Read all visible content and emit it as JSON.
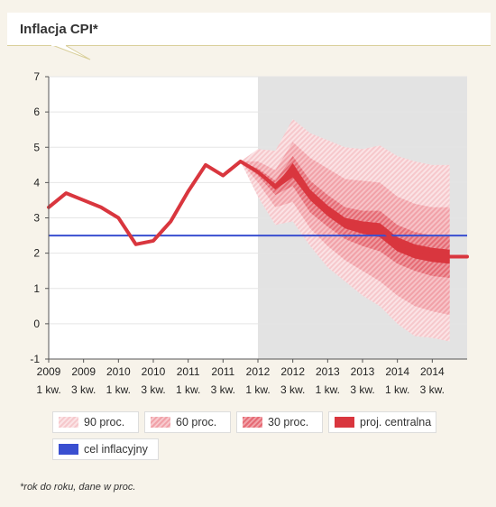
{
  "title": "Inflacja CPI*",
  "footnote": "*rok do roku, dane w proc.",
  "legend": {
    "band90": "90 proc.",
    "band60": "60 proc.",
    "band30": "30 proc.",
    "central": "proj. centralna",
    "target": "cel inflacyjny"
  },
  "colors": {
    "band90": "#f6c8cc",
    "band60": "#f1a1a8",
    "band30": "#e66a74",
    "central": "#d9363e",
    "target": "#3a4fd0",
    "forecast_bg": "#e3e3e3"
  },
  "chart_data": {
    "type": "line",
    "title": "Inflacja CPI*",
    "ylim": [
      -1,
      7
    ],
    "yticks": [
      -1,
      0,
      1,
      2,
      3,
      4,
      5,
      6,
      7
    ],
    "x_tick_years": [
      "2009",
      "2009",
      "2010",
      "2010",
      "2011",
      "2011",
      "2012",
      "2012",
      "2013",
      "2013",
      "2014",
      "2014"
    ],
    "x_tick_quarters": [
      "1 kw.",
      "3 kw.",
      "1 kw.",
      "3 kw.",
      "1 kw.",
      "3 kw.",
      "1 kw.",
      "3 kw.",
      "1 kw.",
      "3 kw.",
      "1 kw.",
      "3 kw."
    ],
    "forecast_start_index": 12,
    "target_value": 2.5,
    "series": [
      {
        "name": "proj. centralna",
        "values": [
          3.3,
          3.7,
          3.5,
          3.3,
          3.0,
          2.25,
          2.35,
          2.9,
          3.75,
          4.5,
          4.2,
          4.6,
          4.3,
          3.9,
          4.4,
          3.7,
          3.25,
          2.9,
          2.75,
          2.7,
          2.3,
          2.1,
          1.95,
          1.9,
          1.9
        ]
      }
    ],
    "fan_bands": {
      "band90": {
        "upper": [
          4.6,
          4.95,
          4.9,
          5.8,
          5.4,
          5.2,
          5.0,
          4.95,
          5.05,
          4.75,
          4.6,
          4.5,
          4.5
        ],
        "lower": [
          4.6,
          3.6,
          2.8,
          2.9,
          2.2,
          1.6,
          1.2,
          0.8,
          0.5,
          0.0,
          -0.35,
          -0.4,
          -0.5
        ]
      },
      "band60": {
        "upper": [
          4.6,
          4.6,
          4.35,
          5.15,
          4.7,
          4.4,
          4.1,
          4.05,
          4.0,
          3.6,
          3.4,
          3.3,
          3.3
        ],
        "lower": [
          4.6,
          4.0,
          3.3,
          3.45,
          2.7,
          2.2,
          1.8,
          1.5,
          1.2,
          0.8,
          0.5,
          0.35,
          0.25
        ]
      },
      "band30": {
        "upper": [
          4.6,
          4.4,
          4.05,
          4.75,
          4.05,
          3.65,
          3.3,
          3.2,
          3.2,
          2.8,
          2.6,
          2.5,
          2.5
        ],
        "lower": [
          4.6,
          4.2,
          3.65,
          3.9,
          3.15,
          2.75,
          2.4,
          2.2,
          2.05,
          1.7,
          1.5,
          1.35,
          1.3
        ]
      },
      "central": {
        "upper": [
          4.6,
          4.3,
          3.9,
          4.55,
          3.8,
          3.35,
          3.0,
          2.9,
          2.85,
          2.45,
          2.25,
          2.15,
          2.1
        ],
        "lower": [
          4.6,
          4.25,
          3.8,
          4.15,
          3.5,
          3.05,
          2.7,
          2.55,
          2.45,
          2.05,
          1.85,
          1.75,
          1.7
        ]
      }
    }
  }
}
